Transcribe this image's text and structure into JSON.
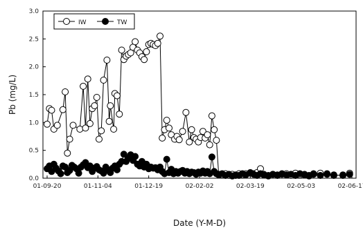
{
  "chart_data": {
    "type": "line",
    "xlabel": "Date (Y-M-D)",
    "ylabel": "Pb (mg/L)",
    "x_ticks": [
      "01-09-20",
      "01-11-04",
      "01-12-19",
      "02-02-02",
      "02-03-19",
      "02-05-03",
      "02-06-17"
    ],
    "x_range_days": [
      0,
      270
    ],
    "ylim": [
      0,
      3.0
    ],
    "y_ticks": [
      "0.0",
      "0.5",
      "1.0",
      "1.5",
      "2.0",
      "2.5",
      "3.0"
    ],
    "grid": false,
    "legend": {
      "placement": "top-left",
      "entries": [
        "IW",
        "TW"
      ]
    },
    "series": [
      {
        "name": "IW",
        "marker": "open-circle",
        "points": [
          [
            0,
            0.97
          ],
          [
            2,
            1.25
          ],
          [
            4,
            1.22
          ],
          [
            6,
            0.88
          ],
          [
            9,
            0.95
          ],
          [
            14,
            1.23
          ],
          [
            16,
            1.55
          ],
          [
            18,
            0.45
          ],
          [
            20,
            0.7
          ],
          [
            23,
            0.95
          ],
          [
            29,
            0.88
          ],
          [
            32,
            1.65
          ],
          [
            34,
            0.9
          ],
          [
            36,
            1.78
          ],
          [
            38,
            0.98
          ],
          [
            40,
            1.25
          ],
          [
            42,
            1.3
          ],
          [
            44,
            1.45
          ],
          [
            46,
            0.7
          ],
          [
            48,
            0.85
          ],
          [
            50,
            1.76
          ],
          [
            53,
            2.12
          ],
          [
            55,
            1.02
          ],
          [
            56,
            1.3
          ],
          [
            59,
            0.88
          ],
          [
            60,
            1.52
          ],
          [
            62,
            1.48
          ],
          [
            64,
            1.15
          ],
          [
            66,
            2.3
          ],
          [
            68,
            2.13
          ],
          [
            70,
            2.19
          ],
          [
            72,
            2.22
          ],
          [
            74,
            2.25
          ],
          [
            76,
            2.35
          ],
          [
            78,
            2.45
          ],
          [
            80,
            2.3
          ],
          [
            82,
            2.25
          ],
          [
            84,
            2.18
          ],
          [
            86,
            2.13
          ],
          [
            88,
            2.27
          ],
          [
            90,
            2.4
          ],
          [
            92,
            2.42
          ],
          [
            94,
            2.4
          ],
          [
            96,
            2.38
          ],
          [
            98,
            2.42
          ],
          [
            100,
            2.55
          ],
          [
            102,
            0.72
          ],
          [
            104,
            0.87
          ],
          [
            106,
            1.04
          ],
          [
            108,
            0.9
          ],
          [
            110,
            0.78
          ],
          [
            113,
            0.7
          ],
          [
            115,
            0.75
          ],
          [
            117,
            0.69
          ],
          [
            120,
            0.84
          ],
          [
            123,
            1.18
          ],
          [
            126,
            0.65
          ],
          [
            128,
            0.87
          ],
          [
            130,
            0.73
          ],
          [
            132,
            0.7
          ],
          [
            134,
            0.65
          ],
          [
            136,
            0.73
          ],
          [
            138,
            0.84
          ],
          [
            140,
            0.72
          ],
          [
            142,
            0.78
          ],
          [
            144,
            0.6
          ],
          [
            146,
            1.12
          ],
          [
            148,
            0.87
          ],
          [
            150,
            0.68
          ],
          [
            152,
            0.07
          ],
          [
            155,
            0.06
          ],
          [
            158,
            0.08
          ],
          [
            161,
            0.05
          ],
          [
            164,
            0.07
          ],
          [
            167,
            0.05
          ],
          [
            170,
            0.08
          ],
          [
            173,
            0.06
          ],
          [
            176,
            0.08
          ],
          [
            180,
            0.09
          ],
          [
            183,
            0.08
          ],
          [
            186,
            0.1
          ],
          [
            189,
            0.17
          ],
          [
            192,
            0.07
          ],
          [
            196,
            0.05
          ],
          [
            200,
            0.07
          ],
          [
            204,
            0.06
          ],
          [
            208,
            0.07
          ],
          [
            212,
            0.08
          ],
          [
            216,
            0.05
          ],
          [
            220,
            0.09
          ],
          [
            224,
            0.06
          ],
          [
            228,
            0.07
          ],
          [
            232,
            0.05
          ],
          [
            236,
            0.08
          ],
          [
            242,
            0.09
          ],
          [
            248,
            0.07
          ],
          [
            254,
            0.05
          ],
          [
            262,
            0.06
          ],
          [
            268,
            0.09
          ]
        ]
      },
      {
        "name": "TW",
        "marker": "filled-circle",
        "points": [
          [
            0,
            0.17
          ],
          [
            2,
            0.22
          ],
          [
            4,
            0.12
          ],
          [
            6,
            0.25
          ],
          [
            8,
            0.18
          ],
          [
            10,
            0.13
          ],
          [
            12,
            0.08
          ],
          [
            14,
            0.22
          ],
          [
            16,
            0.2
          ],
          [
            18,
            0.1
          ],
          [
            20,
            0.14
          ],
          [
            22,
            0.23
          ],
          [
            24,
            0.2
          ],
          [
            26,
            0.17
          ],
          [
            28,
            0.09
          ],
          [
            30,
            0.2
          ],
          [
            32,
            0.24
          ],
          [
            34,
            0.28
          ],
          [
            36,
            0.19
          ],
          [
            38,
            0.22
          ],
          [
            40,
            0.12
          ],
          [
            42,
            0.18
          ],
          [
            44,
            0.21
          ],
          [
            46,
            0.15
          ],
          [
            48,
            0.13
          ],
          [
            50,
            0.09
          ],
          [
            52,
            0.2
          ],
          [
            54,
            0.15
          ],
          [
            56,
            0.1
          ],
          [
            58,
            0.18
          ],
          [
            60,
            0.22
          ],
          [
            62,
            0.15
          ],
          [
            64,
            0.25
          ],
          [
            66,
            0.3
          ],
          [
            68,
            0.43
          ],
          [
            70,
            0.3
          ],
          [
            72,
            0.36
          ],
          [
            74,
            0.42
          ],
          [
            76,
            0.32
          ],
          [
            78,
            0.39
          ],
          [
            80,
            0.25
          ],
          [
            82,
            0.22
          ],
          [
            84,
            0.3
          ],
          [
            86,
            0.2
          ],
          [
            88,
            0.25
          ],
          [
            90,
            0.17
          ],
          [
            92,
            0.2
          ],
          [
            94,
            0.18
          ],
          [
            96,
            0.19
          ],
          [
            98,
            0.15
          ],
          [
            100,
            0.2
          ],
          [
            102,
            0.12
          ],
          [
            104,
            0.08
          ],
          [
            106,
            0.34
          ],
          [
            108,
            0.1
          ],
          [
            110,
            0.16
          ],
          [
            112,
            0.08
          ],
          [
            114,
            0.12
          ],
          [
            116,
            0.09
          ],
          [
            118,
            0.12
          ],
          [
            120,
            0.14
          ],
          [
            122,
            0.09
          ],
          [
            124,
            0.12
          ],
          [
            126,
            0.08
          ],
          [
            128,
            0.11
          ],
          [
            130,
            0.1
          ],
          [
            132,
            0.07
          ],
          [
            134,
            0.11
          ],
          [
            136,
            0.09
          ],
          [
            138,
            0.13
          ],
          [
            140,
            0.09
          ],
          [
            142,
            0.12
          ],
          [
            144,
            0.08
          ],
          [
            146,
            0.38
          ],
          [
            148,
            0.12
          ],
          [
            150,
            0.08
          ],
          [
            152,
            0.06
          ],
          [
            155,
            0.08
          ],
          [
            158,
            0.05
          ],
          [
            161,
            0.07
          ],
          [
            164,
            0.04
          ],
          [
            167,
            0.06
          ],
          [
            170,
            0.05
          ],
          [
            173,
            0.08
          ],
          [
            176,
            0.06
          ],
          [
            180,
            0.1
          ],
          [
            183,
            0.07
          ],
          [
            186,
            0.05
          ],
          [
            189,
            0.08
          ],
          [
            192,
            0.06
          ],
          [
            196,
            0.04
          ],
          [
            200,
            0.07
          ],
          [
            204,
            0.05
          ],
          [
            208,
            0.08
          ],
          [
            212,
            0.06
          ],
          [
            216,
            0.07
          ],
          [
            220,
            0.05
          ],
          [
            224,
            0.08
          ],
          [
            228,
            0.06
          ],
          [
            232,
            0.04
          ],
          [
            236,
            0.07
          ],
          [
            242,
            0.05
          ],
          [
            248,
            0.08
          ],
          [
            254,
            0.06
          ],
          [
            262,
            0.05
          ],
          [
            268,
            0.07
          ]
        ]
      }
    ]
  }
}
